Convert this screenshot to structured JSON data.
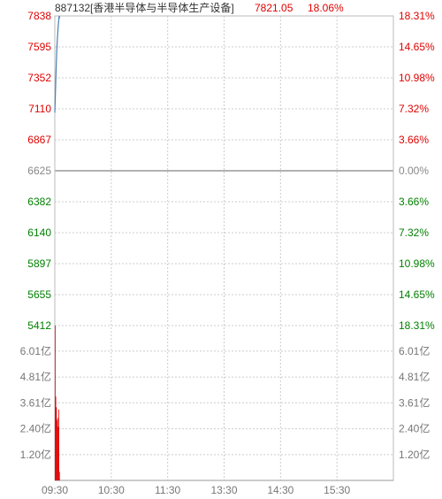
{
  "header": {
    "code_name": "887132[香港半导体与半导体生产设备]",
    "price": "7821.05",
    "change_pct": "18.06%"
  },
  "chart_data": [
    {
      "type": "line",
      "name": "price",
      "base_price": 6625,
      "ylim": [
        5412,
        7838
      ],
      "grid": true,
      "left_ticks": [
        "7838",
        "7595",
        "7352",
        "7110",
        "6867",
        "6625",
        "6382",
        "6140",
        "5897",
        "5655",
        "5412"
      ],
      "right_ticks": [
        "18.31%",
        "14.65%",
        "10.98%",
        "7.32%",
        "3.66%",
        "0.00%",
        "3.66%",
        "7.32%",
        "10.98%",
        "14.65%",
        "18.31%"
      ],
      "x_labels": [
        "09:30",
        "10:30",
        "11:30",
        "13:30",
        "14:30",
        "15:30"
      ],
      "series": [
        {
          "values": [
            7080,
            7200,
            7330,
            7460,
            7560,
            7640,
            7700,
            7760,
            7800,
            7838,
            7821.05
          ]
        }
      ],
      "colors": {
        "line": "#4a7fb0",
        "up": "#e00000",
        "down": "#008000",
        "base": "#888888"
      }
    },
    {
      "type": "bar",
      "name": "volume",
      "unit": "亿",
      "ylim": [
        0,
        7.2
      ],
      "left_ticks": [
        "6.01亿",
        "4.81亿",
        "3.61亿",
        "2.40亿",
        "1.20亿"
      ],
      "right_ticks": [
        "6.01亿",
        "4.81亿",
        "3.61亿",
        "2.40亿",
        "1.20亿"
      ],
      "tick_values": [
        6.01,
        4.81,
        3.61,
        2.4,
        1.2
      ],
      "values": [
        7.2,
        3.9,
        3.4,
        2.8,
        2.9,
        2.5,
        3.3,
        0.4
      ],
      "color": "#e00000"
    }
  ]
}
